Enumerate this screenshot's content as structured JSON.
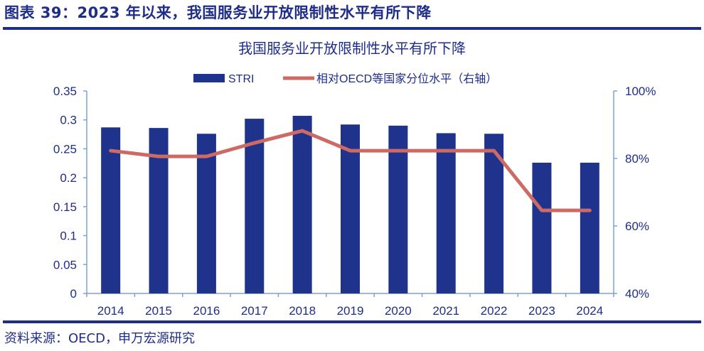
{
  "figure": {
    "title": "图表 39：2023 年以来，我国服务业开放限制性水平有所下降",
    "source": "资料来源：OECD，申万宏源研究"
  },
  "colors": {
    "bar": "#1f338c",
    "line": "#cd6a63",
    "axis": "#7fa0d4",
    "text": "#1f2d8a"
  },
  "chart_data": {
    "type": "bar",
    "title": "我国服务业开放限制性水平有所下降",
    "categories": [
      "2014",
      "2015",
      "2016",
      "2017",
      "2018",
      "2019",
      "2020",
      "2021",
      "2022",
      "2023",
      "2024"
    ],
    "series": [
      {
        "name": "STRI",
        "type": "bar",
        "axis": "left",
        "values": [
          0.287,
          0.286,
          0.276,
          0.302,
          0.307,
          0.292,
          0.29,
          0.277,
          0.276,
          0.226,
          0.226
        ]
      },
      {
        "name": "相对OECD等国家分位水平（右轴）",
        "type": "line",
        "axis": "right",
        "values": [
          82.3,
          80.6,
          80.6,
          84.6,
          88.2,
          82.3,
          82.3,
          82.3,
          82.3,
          64.6,
          64.6
        ]
      }
    ],
    "left_axis": {
      "ylim": [
        0,
        0.35
      ],
      "ticks": [
        "0",
        "0.05",
        "0.1",
        "0.15",
        "0.2",
        "0.25",
        "0.3",
        "0.35"
      ]
    },
    "right_axis": {
      "ylim": [
        40,
        100
      ],
      "ticks": [
        "40%",
        "60%",
        "80%",
        "100%"
      ]
    },
    "legend_position": "top-center",
    "grid": false
  }
}
